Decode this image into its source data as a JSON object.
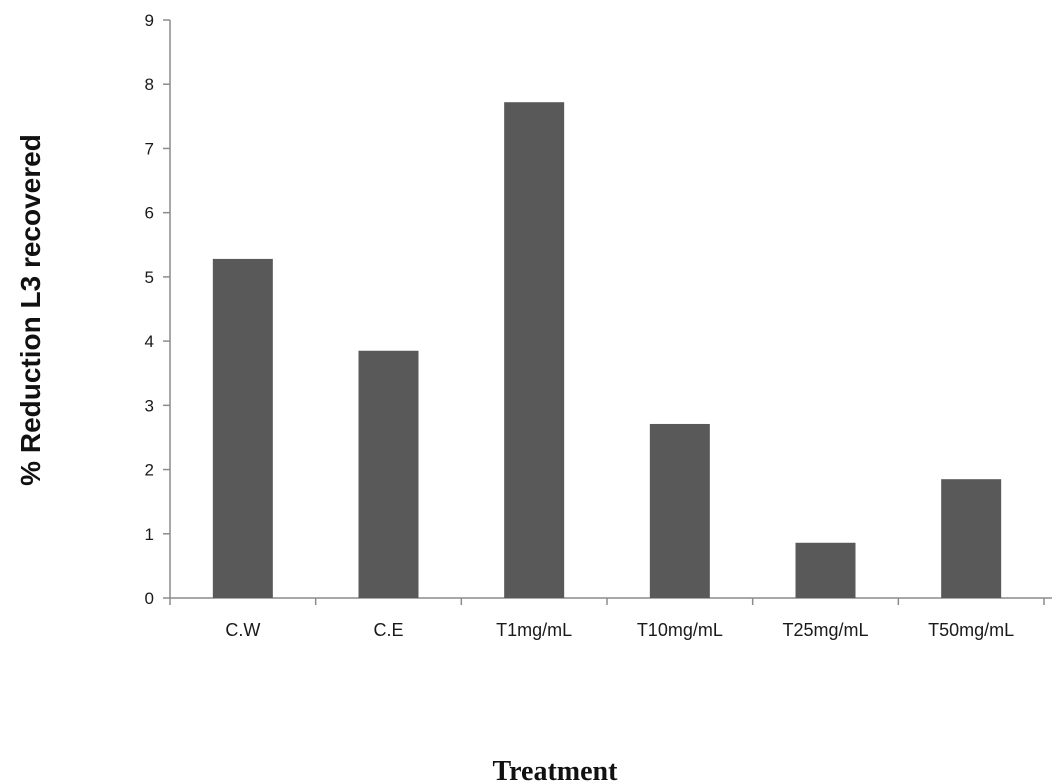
{
  "chart_data": {
    "type": "bar",
    "categories": [
      "C.W",
      "C.E",
      "T1mg/mL",
      "T10mg/mL",
      "T25mg/mL",
      "T50mg/mL"
    ],
    "values": [
      5.28,
      3.85,
      7.72,
      2.71,
      0.86,
      1.85
    ],
    "title": "",
    "xlabel": "Treatment",
    "ylabel": "% Reduction L3 recovered",
    "ylim": [
      0,
      9
    ],
    "yticks": [
      0,
      1,
      2,
      3,
      4,
      5,
      6,
      7,
      8,
      9
    ],
    "grid": false,
    "legend": "none",
    "bar_color": "#595959",
    "axis_color": "#8c8c8c"
  }
}
